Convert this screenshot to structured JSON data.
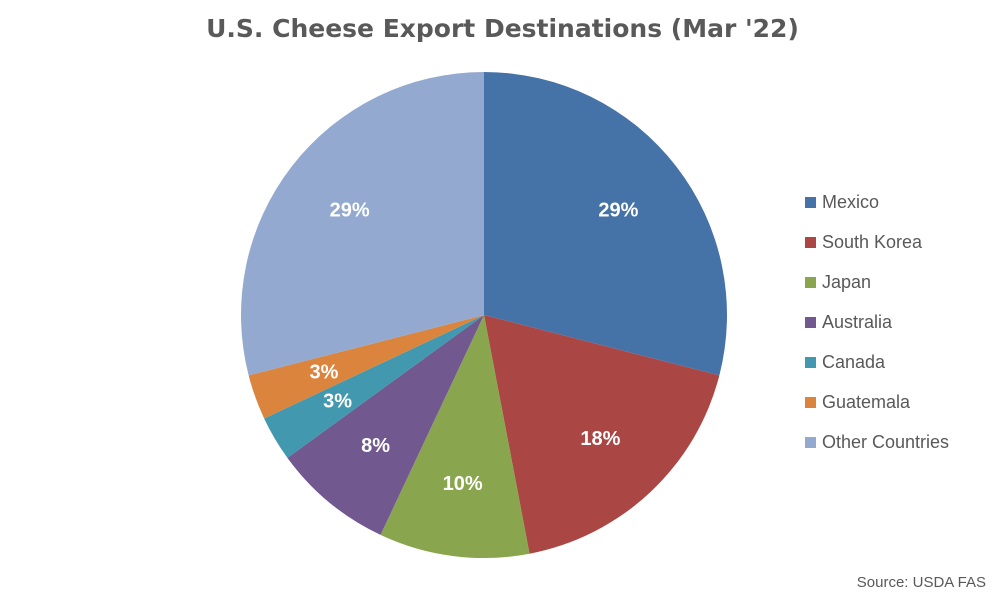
{
  "chart_data": {
    "type": "pie",
    "title": "U.S. Cheese Export Destinations (Mar '22)",
    "source": "Source: USDA FAS",
    "legend_position": "right",
    "start_angle_deg": 0,
    "direction": "clockwise",
    "slices": [
      {
        "label": "Mexico",
        "value": 29,
        "display": "29%",
        "color": "#4572A7"
      },
      {
        "label": "South Korea",
        "value": 18,
        "display": "18%",
        "color": "#AA4643"
      },
      {
        "label": "Japan",
        "value": 10,
        "display": "10%",
        "color": "#89A54E"
      },
      {
        "label": "Australia",
        "value": 8,
        "display": "8%",
        "color": "#71588F"
      },
      {
        "label": "Canada",
        "value": 3,
        "display": "3%",
        "color": "#4198AF"
      },
      {
        "label": "Guatemala",
        "value": 3,
        "display": "3%",
        "color": "#DB843D"
      },
      {
        "label": "Other Countries",
        "value": 29,
        "display": "29%",
        "color": "#93A9CF"
      }
    ]
  }
}
